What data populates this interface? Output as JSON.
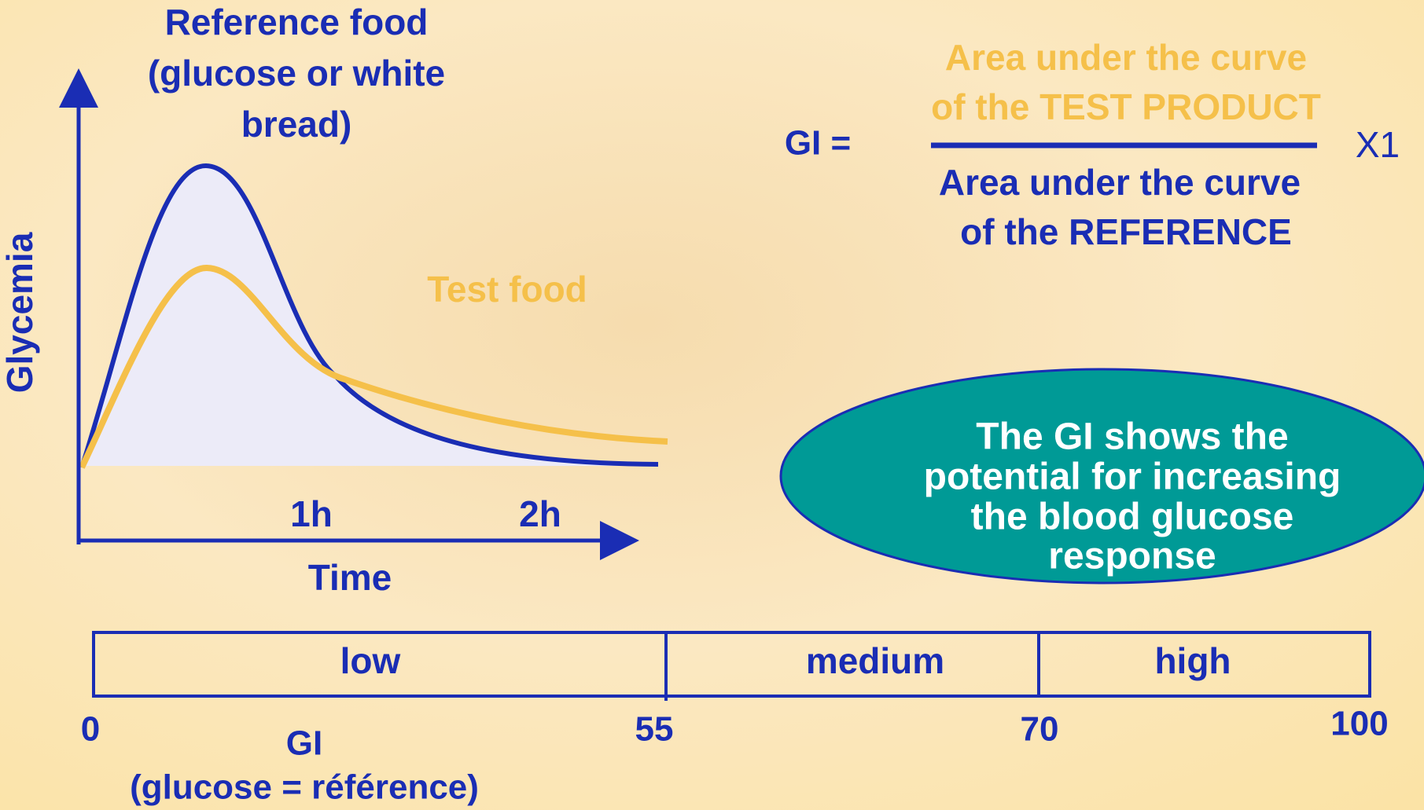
{
  "reference": {
    "lines": [
      "Reference food",
      "(glucose or white",
      "bread)"
    ]
  },
  "y_axis_label": "Glycemia",
  "x_axis_label": "Time",
  "x_ticks": [
    "1h",
    "2h"
  ],
  "test_label": "Test food",
  "formula": {
    "lhs": "GI =",
    "numerator": [
      "Area under the curve",
      "of the TEST PRODUCT"
    ],
    "denominator": [
      "Area under the curve",
      "of the REFERENCE"
    ],
    "multiplier": "X1"
  },
  "note": [
    "The GI shows the",
    "potential for increasing",
    "the blood glucose",
    "response"
  ],
  "scale": {
    "segments": [
      "low",
      "medium",
      "high"
    ],
    "marks": [
      0,
      55,
      70,
      100
    ],
    "label": [
      "GI",
      "(glucose = référence)"
    ]
  }
}
